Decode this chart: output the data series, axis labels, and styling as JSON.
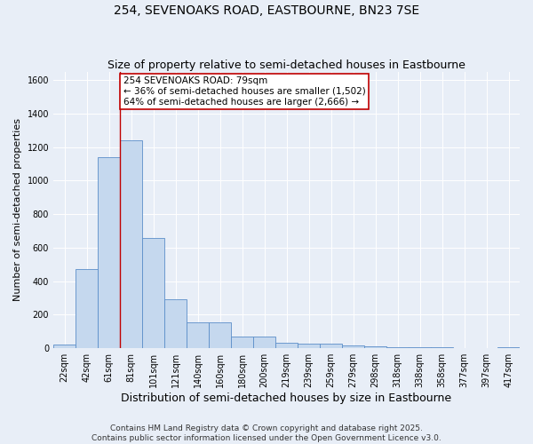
{
  "title": "254, SEVENOAKS ROAD, EASTBOURNE, BN23 7SE",
  "subtitle": "Size of property relative to semi-detached houses in Eastbourne",
  "xlabel": "Distribution of semi-detached houses by size in Eastbourne",
  "ylabel": "Number of semi-detached properties",
  "categories": [
    "22sqm",
    "42sqm",
    "61sqm",
    "81sqm",
    "101sqm",
    "121sqm",
    "140sqm",
    "160sqm",
    "180sqm",
    "200sqm",
    "219sqm",
    "239sqm",
    "259sqm",
    "279sqm",
    "298sqm",
    "318sqm",
    "338sqm",
    "358sqm",
    "377sqm",
    "397sqm",
    "417sqm"
  ],
  "values": [
    22,
    470,
    1140,
    1240,
    660,
    295,
    157,
    157,
    70,
    68,
    35,
    28,
    25,
    15,
    12,
    8,
    5,
    4,
    3,
    2,
    8
  ],
  "bar_color": "#c5d8ee",
  "bar_edge_color": "#5b8ec9",
  "vline_x_index": 3,
  "vline_color": "#c00000",
  "annotation_text": "254 SEVENOAKS ROAD: 79sqm\n← 36% of semi-detached houses are smaller (1,502)\n64% of semi-detached houses are larger (2,666) →",
  "annotation_box_facecolor": "#ffffff",
  "annotation_box_edgecolor": "#c00000",
  "ylim": [
    0,
    1650
  ],
  "yticks": [
    0,
    200,
    400,
    600,
    800,
    1000,
    1200,
    1400,
    1600
  ],
  "footer": "Contains HM Land Registry data © Crown copyright and database right 2025.\nContains public sector information licensed under the Open Government Licence v3.0.",
  "bg_color": "#e8eef7",
  "title_fontsize": 10,
  "subtitle_fontsize": 9,
  "xlabel_fontsize": 9,
  "ylabel_fontsize": 8,
  "tick_fontsize": 7,
  "footer_fontsize": 6.5,
  "annotation_fontsize": 7.5
}
